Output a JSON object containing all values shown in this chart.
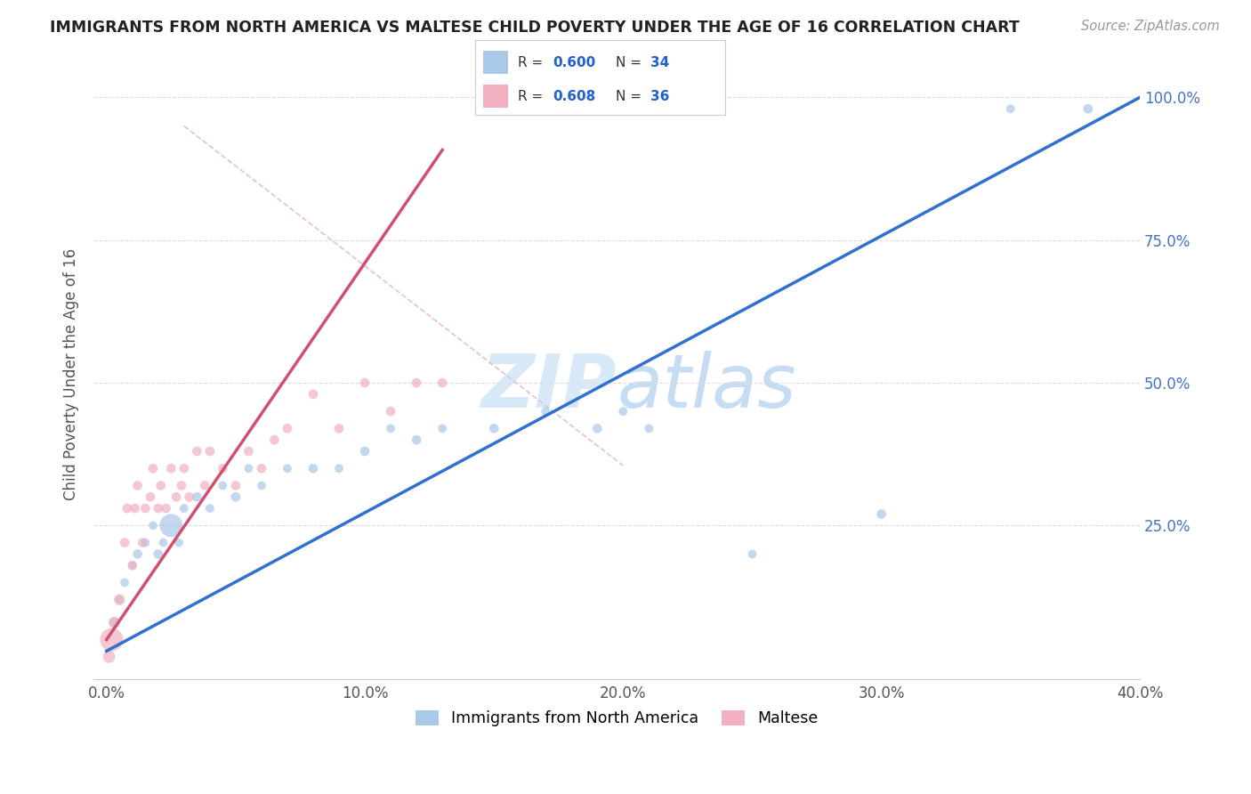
{
  "title": "IMMIGRANTS FROM NORTH AMERICA VS MALTESE CHILD POVERTY UNDER THE AGE OF 16 CORRELATION CHART",
  "source": "Source: ZipAtlas.com",
  "xlabel_blue": "Immigrants from North America",
  "xlabel_pink": "Maltese",
  "ylabel": "Child Poverty Under the Age of 16",
  "xlim": [
    -0.5,
    40.0
  ],
  "ylim": [
    -2.0,
    105.0
  ],
  "xticks": [
    0.0,
    10.0,
    20.0,
    30.0,
    40.0
  ],
  "yticks": [
    25.0,
    50.0,
    75.0,
    100.0
  ],
  "xtick_labels": [
    "0.0%",
    "10.0%",
    "20.0%",
    "30.0%",
    "40.0%"
  ],
  "ytick_labels": [
    "25.0%",
    "50.0%",
    "75.0%",
    "100.0%"
  ],
  "R_blue": 0.6,
  "N_blue": 34,
  "R_pink": 0.608,
  "N_pink": 36,
  "blue_color": "#aac8e8",
  "pink_color": "#f0b0c0",
  "blue_line_color": "#3070d0",
  "pink_line_color": "#d05070",
  "diag_line_color": "#e8b8c8",
  "watermark_color": "#d8eaf8",
  "blue_scatter_x": [
    0.3,
    0.5,
    0.7,
    1.0,
    1.2,
    1.5,
    1.8,
    2.0,
    2.2,
    2.5,
    2.8,
    3.0,
    3.5,
    4.0,
    4.5,
    5.0,
    5.5,
    6.0,
    7.0,
    8.0,
    9.0,
    10.0,
    11.0,
    12.0,
    13.0,
    15.0,
    17.0,
    19.0,
    20.0,
    21.0,
    25.0,
    30.0,
    35.0,
    38.0
  ],
  "blue_scatter_y": [
    8.0,
    12.0,
    15.0,
    18.0,
    20.0,
    22.0,
    25.0,
    20.0,
    22.0,
    25.0,
    22.0,
    28.0,
    30.0,
    28.0,
    32.0,
    30.0,
    35.0,
    32.0,
    35.0,
    35.0,
    35.0,
    38.0,
    42.0,
    40.0,
    42.0,
    42.0,
    45.0,
    42.0,
    45.0,
    42.0,
    20.0,
    27.0,
    98.0,
    98.0
  ],
  "blue_scatter_size": [
    80,
    50,
    50,
    50,
    60,
    50,
    50,
    60,
    50,
    350,
    50,
    50,
    60,
    50,
    50,
    60,
    50,
    50,
    50,
    60,
    50,
    60,
    50,
    60,
    50,
    60,
    50,
    60,
    50,
    50,
    50,
    60,
    50,
    60
  ],
  "pink_scatter_x": [
    0.1,
    0.2,
    0.3,
    0.5,
    0.7,
    0.8,
    1.0,
    1.1,
    1.2,
    1.4,
    1.5,
    1.7,
    1.8,
    2.0,
    2.1,
    2.3,
    2.5,
    2.7,
    2.9,
    3.0,
    3.2,
    3.5,
    3.8,
    4.0,
    4.5,
    5.0,
    5.5,
    6.0,
    6.5,
    7.0,
    8.0,
    9.0,
    10.0,
    11.0,
    12.0,
    13.0
  ],
  "pink_scatter_y": [
    2.0,
    5.0,
    8.0,
    12.0,
    22.0,
    28.0,
    18.0,
    28.0,
    32.0,
    22.0,
    28.0,
    30.0,
    35.0,
    28.0,
    32.0,
    28.0,
    35.0,
    30.0,
    32.0,
    35.0,
    30.0,
    38.0,
    32.0,
    38.0,
    35.0,
    32.0,
    38.0,
    35.0,
    40.0,
    42.0,
    48.0,
    42.0,
    50.0,
    45.0,
    50.0,
    50.0
  ],
  "pink_scatter_size": [
    100,
    350,
    80,
    80,
    60,
    60,
    60,
    60,
    60,
    60,
    60,
    60,
    60,
    60,
    60,
    60,
    60,
    60,
    60,
    60,
    60,
    60,
    60,
    60,
    60,
    60,
    60,
    60,
    60,
    60,
    60,
    60,
    60,
    60,
    60,
    60
  ]
}
